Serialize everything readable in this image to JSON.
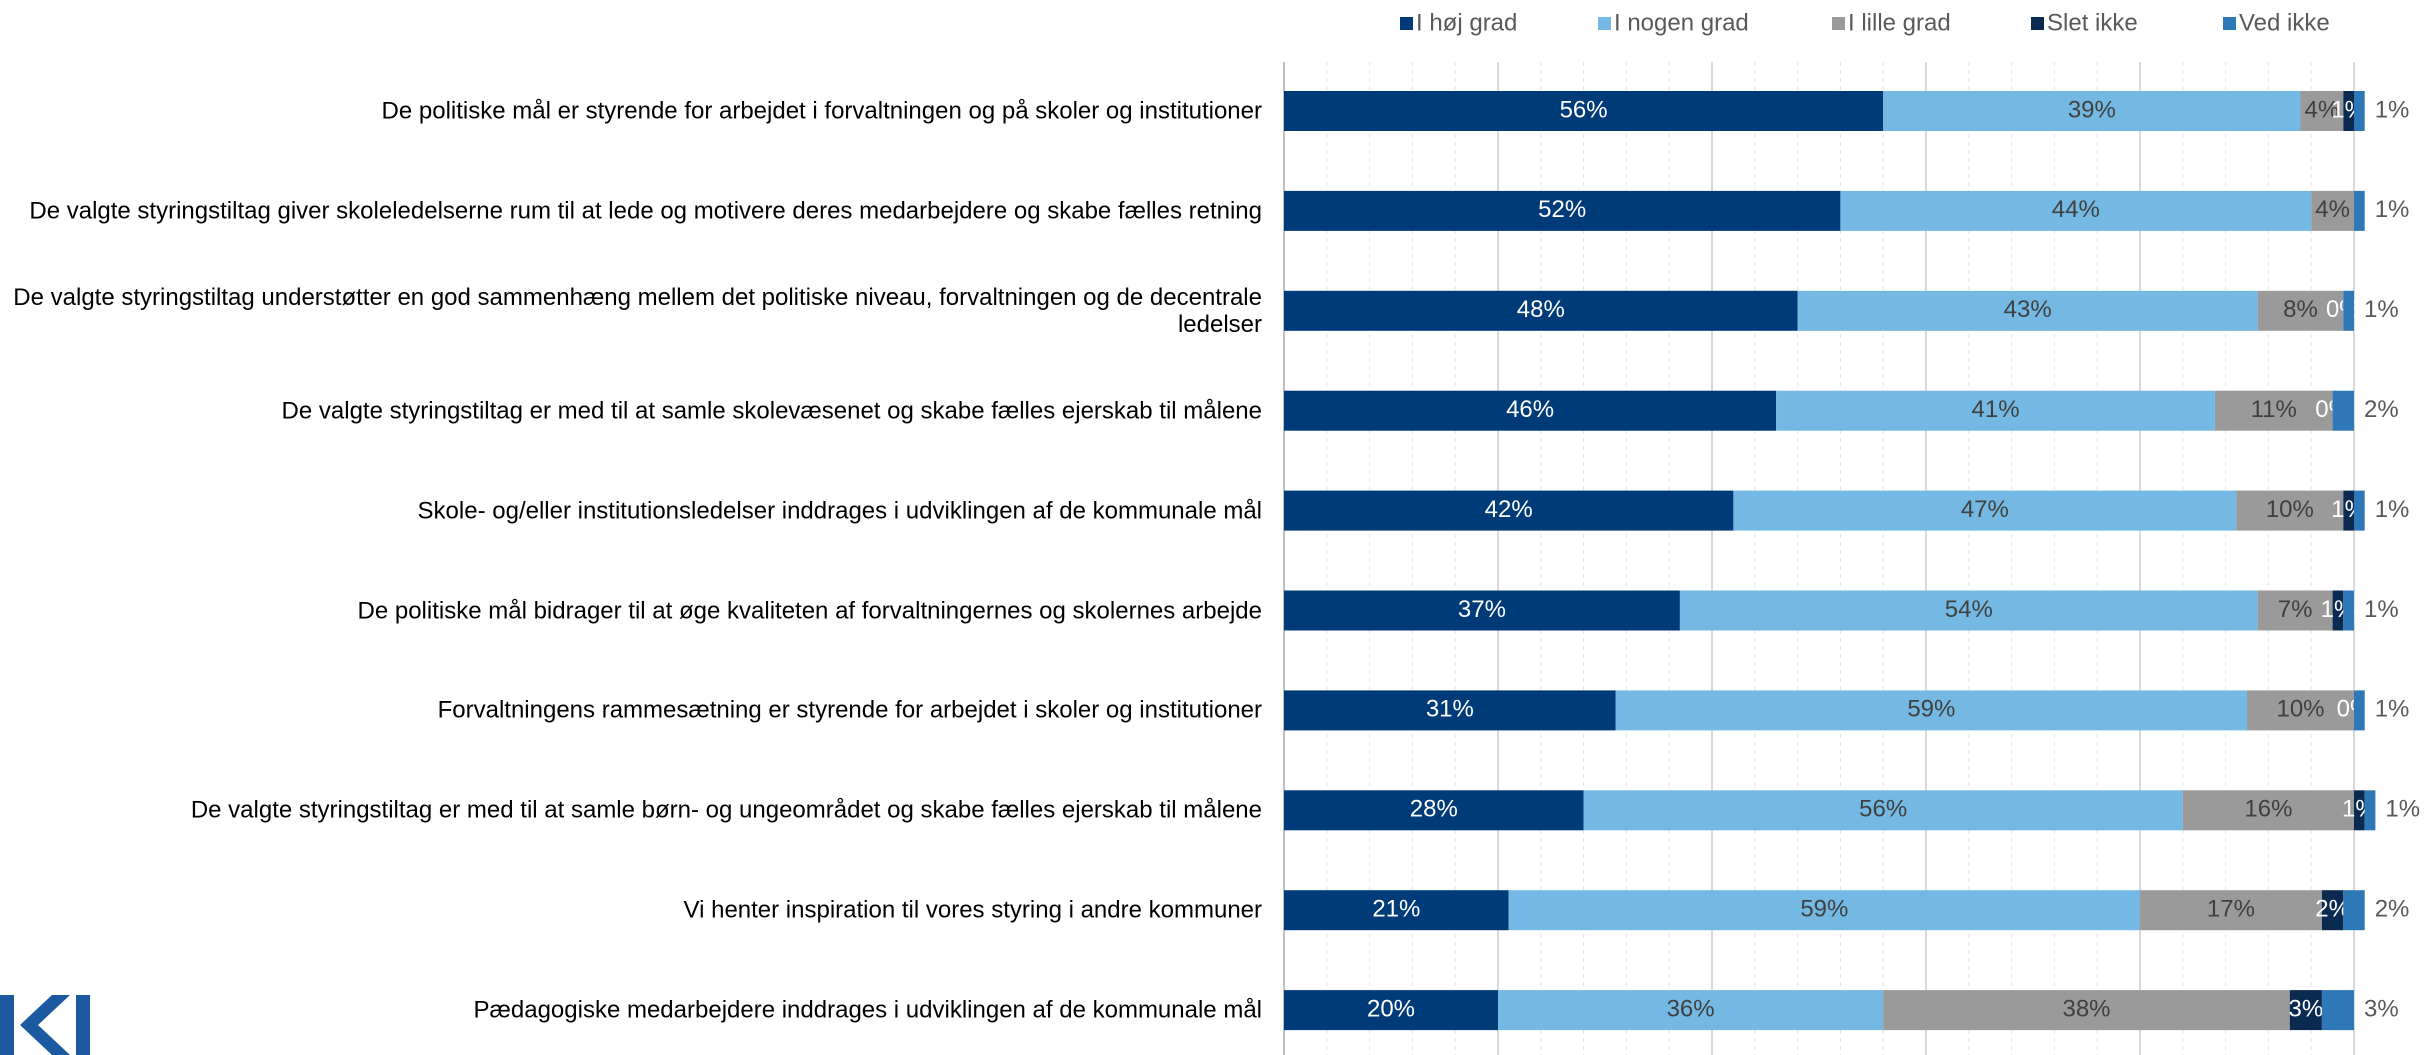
{
  "chart_data": {
    "type": "stacked-bar-horizontal",
    "categories": [
      "De politiske mål er styrende for arbejdet i forvaltningen og på skoler og institutioner",
      "De valgte styringstiltag giver skoleledelserne rum til at lede og motivere deres medarbejdere og skabe fælles retning",
      "De valgte styringstiltag understøtter en god sammenhæng mellem det politiske niveau, forvaltningen og de decentrale ledelser",
      "De valgte styringstiltag er med til at samle skolevæsenet og skabe fælles ejerskab til målene",
      "Skole- og/eller institutionsledelser inddrages i udviklingen af de kommunale mål",
      "De politiske mål bidrager til at øge kvaliteten af forvaltningernes og skolernes arbejde",
      "Forvaltningens rammesætning er styrende for arbejdet i skoler og institutioner",
      "De valgte styringstiltag er med til at samle børn- og ungeområdet og skabe fælles ejerskab til målene",
      "Vi henter inspiration til vores styring i andre kommuner",
      "Pædagogiske medarbejdere inddrages i udviklingen af de kommunale mål"
    ],
    "series": [
      {
        "name": "I høj grad",
        "color": "#003b79",
        "values": [
          56,
          52,
          48,
          46,
          42,
          37,
          31,
          28,
          21,
          20
        ],
        "value_labels": [
          "56%",
          "52%",
          "48%",
          "46%",
          "42%",
          "37%",
          "31%",
          "28%",
          "21%",
          "20%"
        ]
      },
      {
        "name": "I nogen grad",
        "color": "#74b9e3",
        "values": [
          39,
          44,
          43,
          41,
          47,
          54,
          59,
          56,
          59,
          36
        ],
        "value_labels": [
          "39%",
          "44%",
          "43%",
          "41%",
          "47%",
          "54%",
          "59%",
          "56%",
          "59%",
          "36%"
        ]
      },
      {
        "name": "I lille grad",
        "color": "#9a9a9a",
        "values": [
          4,
          4,
          8,
          11,
          10,
          7,
          10,
          16,
          17,
          38
        ],
        "value_labels": [
          "4%",
          "4%",
          "8%",
          "11%",
          "10%",
          "7%",
          "10%",
          "16%",
          "17%",
          "38%"
        ]
      },
      {
        "name": "Slet ikke",
        "color": "#0b2a50",
        "values": [
          1,
          null,
          0,
          0,
          1,
          1,
          0,
          1,
          2,
          3
        ],
        "value_labels": [
          "1%",
          null,
          "0%",
          "0%",
          "1%",
          "1%",
          "0%",
          "1%",
          "2%",
          "3%"
        ]
      },
      {
        "name": "Ved ikke",
        "color": "#2e78b7",
        "values": [
          1,
          1,
          1,
          2,
          1,
          1,
          1,
          1,
          2,
          3
        ],
        "value_labels": [
          "1%",
          "1%",
          "1%",
          "2%",
          "1%",
          "1%",
          "1%",
          "1%",
          "2%",
          "3%"
        ]
      }
    ],
    "xlim": [
      0,
      100
    ],
    "xticks": [
      0,
      20,
      40,
      60,
      80,
      100
    ],
    "grid": true,
    "legend": "top"
  }
}
